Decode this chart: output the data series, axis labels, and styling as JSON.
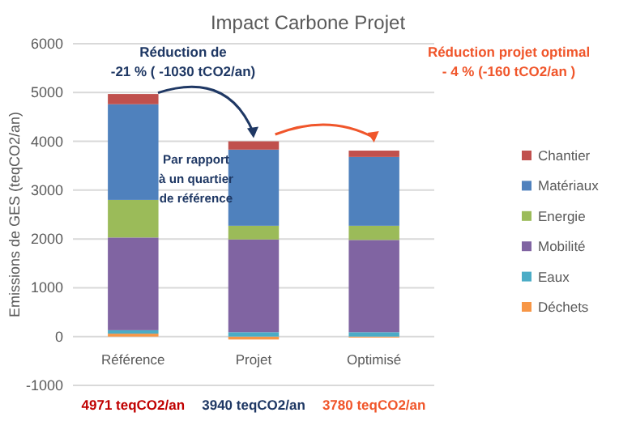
{
  "chart_data": {
    "type": "bar",
    "stacked": true,
    "title": "Impact Carbone Projet",
    "ylabel": "Emissions de GES (teqCO2/an)",
    "categories": [
      "Référence",
      "Projet",
      "Optimisé"
    ],
    "series": [
      {
        "name": "Déchets",
        "color": "#f79646",
        "values": [
          60,
          -60,
          -20
        ]
      },
      {
        "name": "Eaux",
        "color": "#4bacc6",
        "values": [
          70,
          90,
          90
        ]
      },
      {
        "name": "Mobilité",
        "color": "#8064a2",
        "values": [
          1900,
          1900,
          1890
        ]
      },
      {
        "name": "Energie",
        "color": "#9bbb59",
        "values": [
          770,
          280,
          290
        ]
      },
      {
        "name": "Matériaux",
        "color": "#4f81bd",
        "values": [
          1960,
          1560,
          1410
        ]
      },
      {
        "name": "Chantier",
        "color": "#c0504d",
        "values": [
          210,
          170,
          130
        ]
      }
    ],
    "ylim": [
      -1000,
      6000
    ],
    "yticks": [
      -1000,
      0,
      1000,
      2000,
      3000,
      4000,
      5000,
      6000
    ],
    "grid": "y",
    "legend": "right",
    "annotations": [
      {
        "text": "Réduction de -21 % ( -1030 tCO2/an)",
        "x": "Projet",
        "y": 4000
      },
      "Réduction projet optimal - 4 % (-160 tCO2/an )",
      "Par rapport à un quartier de référence",
      "4971 teqCO2/an",
      "3940 teqCO2/an",
      "3780 teqCO2/an"
    ]
  }
}
